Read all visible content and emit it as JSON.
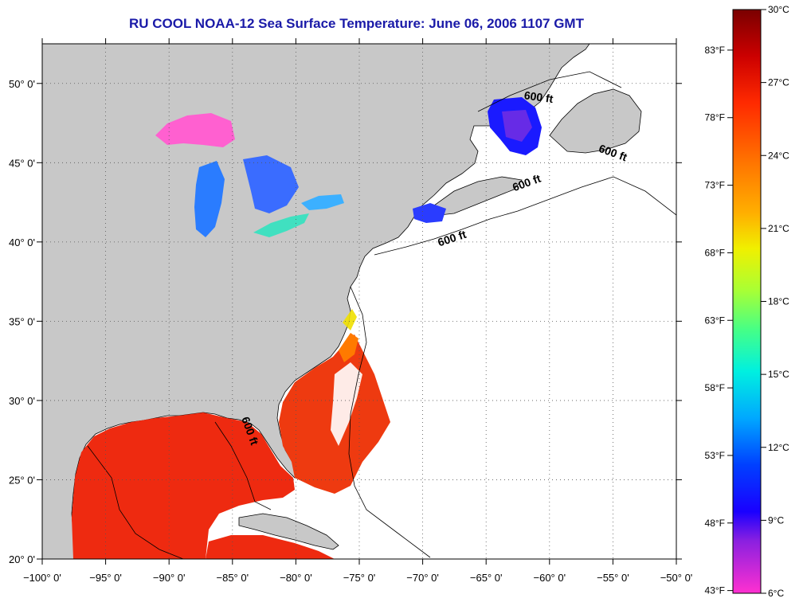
{
  "title": "RU COOL  NOAA-12  Sea Surface Temperature:  June 06, 2006 1107 GMT",
  "x_axis": {
    "ticks": [
      "−100° 0'",
      "−95° 0'",
      "−90° 0'",
      "−85° 0'",
      "−80° 0'",
      "−75° 0'",
      "−70° 0'",
      "−65° 0'",
      "−60° 0'",
      "−55° 0'",
      "−50° 0'"
    ],
    "values": [
      -100,
      -95,
      -90,
      -85,
      -80,
      -75,
      -70,
      -65,
      -60,
      -55,
      -50
    ]
  },
  "y_axis": {
    "ticks": [
      "20° 0'",
      "25° 0'",
      "30° 0'",
      "35° 0'",
      "40° 0'",
      "45° 0'",
      "50° 0'"
    ],
    "values": [
      20,
      25,
      30,
      35,
      40,
      45,
      50
    ]
  },
  "map_extent": {
    "lon": [
      -100,
      -50
    ],
    "lat": [
      20,
      52.5
    ]
  },
  "contour_labels": [
    {
      "text": "600 ft",
      "lon": -60.9,
      "lat": 48.9,
      "angle": 8
    },
    {
      "text": "600 ft",
      "lon": -55.1,
      "lat": 45.4,
      "angle": 20
    },
    {
      "text": "600 ft",
      "lon": -61.7,
      "lat": 43.5,
      "angle": -20
    },
    {
      "text": "600 ft",
      "lon": -67.6,
      "lat": 40.0,
      "angle": -18
    },
    {
      "text": "600 ft",
      "lon": -83.9,
      "lat": 28.0,
      "angle": 70
    }
  ],
  "colorbar": {
    "celsius": [
      "30°C",
      "27°C",
      "24°C",
      "21°C",
      "18°C",
      "15°C",
      "12°C",
      "9°C",
      "6°C"
    ],
    "celsius_values": [
      30,
      27,
      24,
      21,
      18,
      15,
      12,
      9,
      6
    ],
    "fahrenheit": [
      "83°F",
      "78°F",
      "73°F",
      "68°F",
      "63°F",
      "58°F",
      "53°F",
      "48°F",
      "43°F"
    ],
    "fahrenheit_values": [
      83,
      78,
      73,
      68,
      63,
      58,
      53,
      48,
      43
    ],
    "range_c": [
      6,
      30
    ],
    "colors": [
      "#7a0000",
      "#cc0000",
      "#ff2a00",
      "#ff7a00",
      "#ffb000",
      "#f0f000",
      "#aaff33",
      "#44ff88",
      "#00f0e0",
      "#00a8ff",
      "#0040ff",
      "#1a00ff",
      "#8a20e0",
      "#ff30d0"
    ]
  },
  "colors": {
    "land": "#c8c8c8",
    "ocean_nodata": "#ffffff",
    "coast": "#000000",
    "title": "#1a1aa8"
  }
}
